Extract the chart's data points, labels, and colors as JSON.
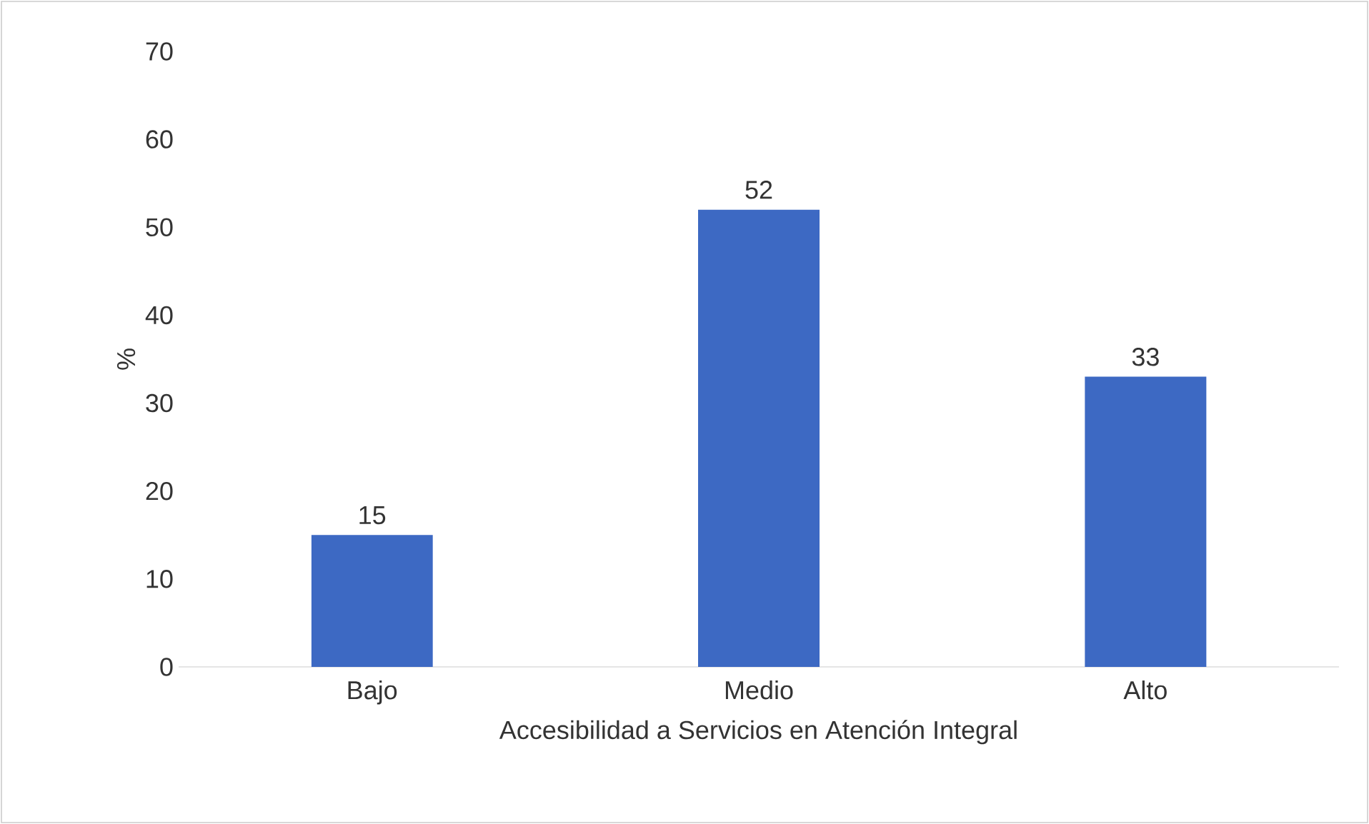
{
  "chart_data": {
    "type": "bar",
    "xlabel": "Accesibilidad a Servicios en Atención Integral",
    "ylabel": "%",
    "categories": [
      "Bajo",
      "Medio",
      "Alto"
    ],
    "values": [
      15,
      52,
      33
    ],
    "color": "#3d69c3",
    "ylim": [
      0,
      70
    ],
    "yticks": [
      0,
      10,
      20,
      30,
      40,
      50,
      60,
      70
    ],
    "data_labels": true
  }
}
